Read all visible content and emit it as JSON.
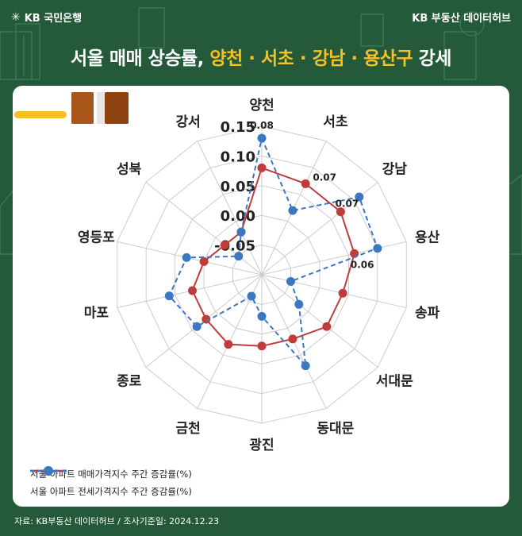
{
  "header": {
    "logo_text": "KB 국민은행",
    "brand_text": "KB 부동산 데이터허브"
  },
  "title": {
    "part1": "서울 매매 상승률, ",
    "highlight": "양천 · 서초 · 강남 · 용산구",
    "part2": " 강세"
  },
  "colors": {
    "background": "#245a3a",
    "highlight": "#f5c024",
    "sale_series": "#c23b3b",
    "jeonse_series": "#3b78c2",
    "grid": "#cccccc"
  },
  "chart_data": {
    "type": "radar",
    "categories": [
      "양천",
      "서초",
      "강남",
      "용산",
      "송파",
      "서대문",
      "동대문",
      "광진",
      "금천",
      "종로",
      "마포",
      "영등포",
      "성북",
      "강서"
    ],
    "rlim": [
      -0.1,
      0.15
    ],
    "ticks": [
      "0.15",
      "0.10",
      "0.05",
      "0.00",
      "-0.05"
    ],
    "tick_values": [
      0.15,
      0.1,
      0.05,
      0.0,
      -0.05
    ],
    "grid": true,
    "legend_position": "bottom-left",
    "series": [
      {
        "name": "서울 아파트 매매가격지수 주간 증감률(%)",
        "values": [
          0.08,
          0.07,
          0.07,
          0.06,
          0.04,
          0.04,
          0.02,
          0.02,
          0.03,
          0.02,
          0.02,
          0.0,
          -0.02,
          -0.02
        ]
      },
      {
        "name": "서울 아파트 전세가격지수 주간 증감률(%)",
        "values": [
          0.13,
          0.02,
          0.11,
          0.1,
          -0.05,
          -0.02,
          0.07,
          -0.03,
          -0.06,
          0.04,
          0.06,
          0.03,
          -0.05,
          -0.02
        ]
      }
    ],
    "data_labels": [
      {
        "category": "양천",
        "text": "0.08"
      },
      {
        "category": "서초",
        "text": "0.07"
      },
      {
        "category": "강남",
        "text": "0.07"
      },
      {
        "category": "용산",
        "text": "0.06"
      }
    ]
  },
  "legend": {
    "sale_label": "서울 아파트 매매가격지수 주간 증감률(%)",
    "jeonse_label": "서울 아파트 전세가격지수 주간 증감률(%)"
  },
  "footer": {
    "source": "자료: KB부동산 데이터허브 / 조사기준일: 2024.12.23"
  }
}
